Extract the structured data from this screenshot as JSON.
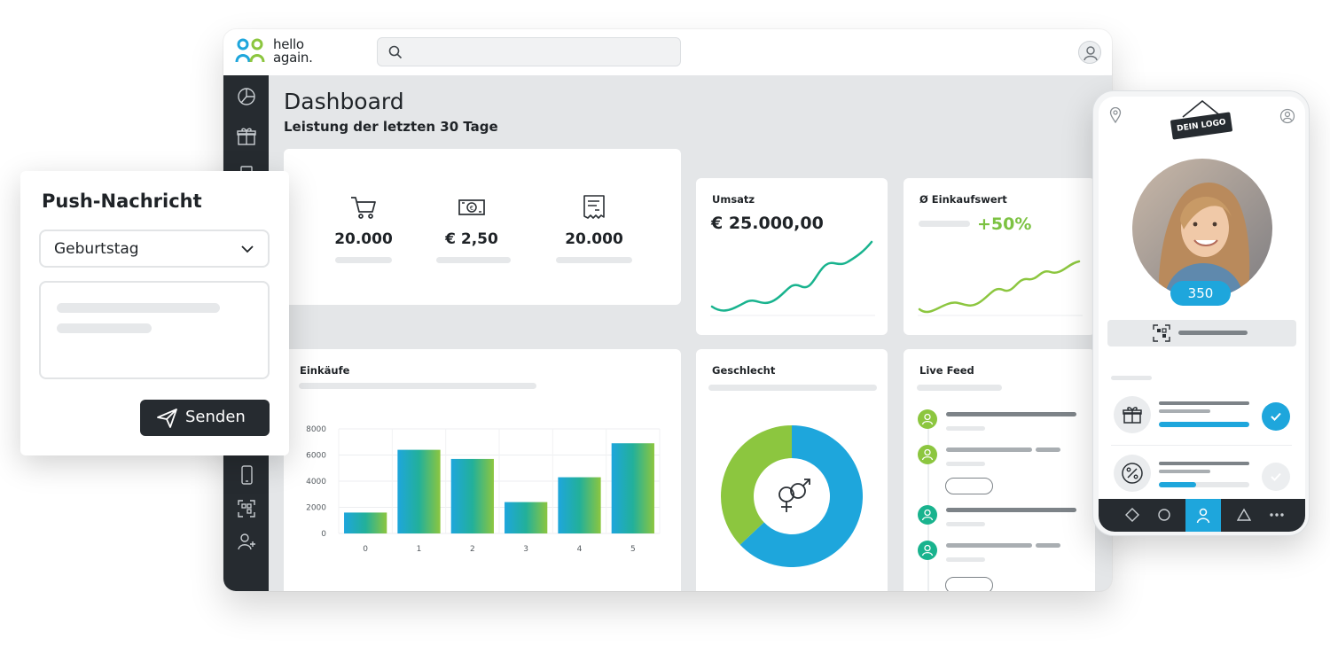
{
  "brand": {
    "line1": "hello",
    "line2": "again."
  },
  "search": {
    "placeholder": ""
  },
  "dashboard": {
    "title": "Dashboard",
    "subtitle": "Leistung der letzten 30 Tage",
    "kpis": [
      {
        "icon": "cart-icon",
        "value": "20.000"
      },
      {
        "icon": "banknote-icon",
        "value": "€ 2,50"
      },
      {
        "icon": "receipt-icon",
        "value": "20.000"
      }
    ],
    "umsatz": {
      "title": "Umsatz",
      "value": "€ 25.000,00"
    },
    "einkaufswert": {
      "title": "Ø Einkaufswert",
      "growth": "+50%"
    },
    "einkaeufe": {
      "title": "Einkäufe"
    },
    "geschlecht": {
      "title": "Geschlecht"
    },
    "live_feed": {
      "title": "Live Feed"
    }
  },
  "chart_data": [
    {
      "type": "bar",
      "title": "Einkäufe",
      "categories": [
        "0",
        "1",
        "2",
        "3",
        "4",
        "5"
      ],
      "values": [
        1600,
        6400,
        5700,
        2400,
        4300,
        6900
      ],
      "yticks": [
        "0",
        "2000",
        "4000",
        "6000",
        "8000"
      ],
      "ylim": [
        0,
        8000
      ],
      "grid": true
    },
    {
      "type": "pie",
      "title": "Geschlecht",
      "values": [
        63,
        37
      ],
      "colors": [
        "#1ea6dc",
        "#8cc63f"
      ]
    }
  ],
  "push": {
    "title": "Push-Nachricht",
    "selected": "Geburtstag",
    "send_label": "Senden"
  },
  "phone": {
    "logo_badge": "DEIN LOGO",
    "points": "350"
  },
  "colors": {
    "accent_blue": "#1ea6dc",
    "accent_green": "#7cc242",
    "dark": "#262b30"
  }
}
